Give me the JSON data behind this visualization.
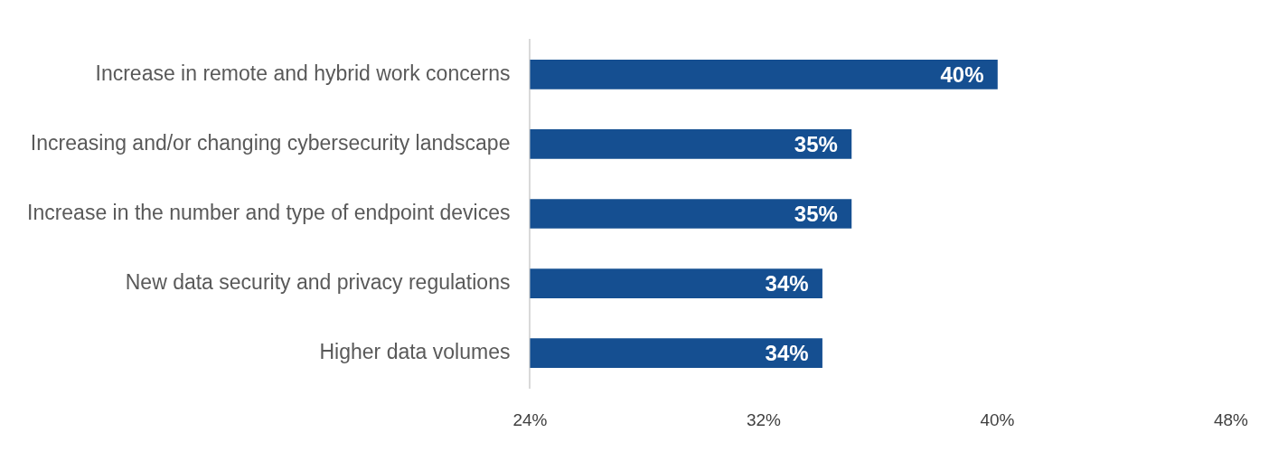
{
  "chart_data": {
    "type": "bar",
    "orientation": "horizontal",
    "categories": [
      "Increase in remote and hybrid work concerns",
      "Increasing and/or changing cybersecurity landscape",
      "Increase in the number and type of endpoint devices",
      "New data security and privacy regulations",
      "Higher data volumes"
    ],
    "values": [
      40,
      35,
      35,
      34,
      34
    ],
    "value_labels": [
      "40%",
      "35%",
      "35%",
      "34%",
      "34%"
    ],
    "color": "#154f91",
    "xlim": [
      24,
      48
    ],
    "xticks": [
      {
        "value": 24,
        "label": "24%"
      },
      {
        "value": 32,
        "label": "32%"
      },
      {
        "value": 40,
        "label": "40%"
      },
      {
        "value": 48,
        "label": "48%"
      }
    ],
    "grid": false
  }
}
